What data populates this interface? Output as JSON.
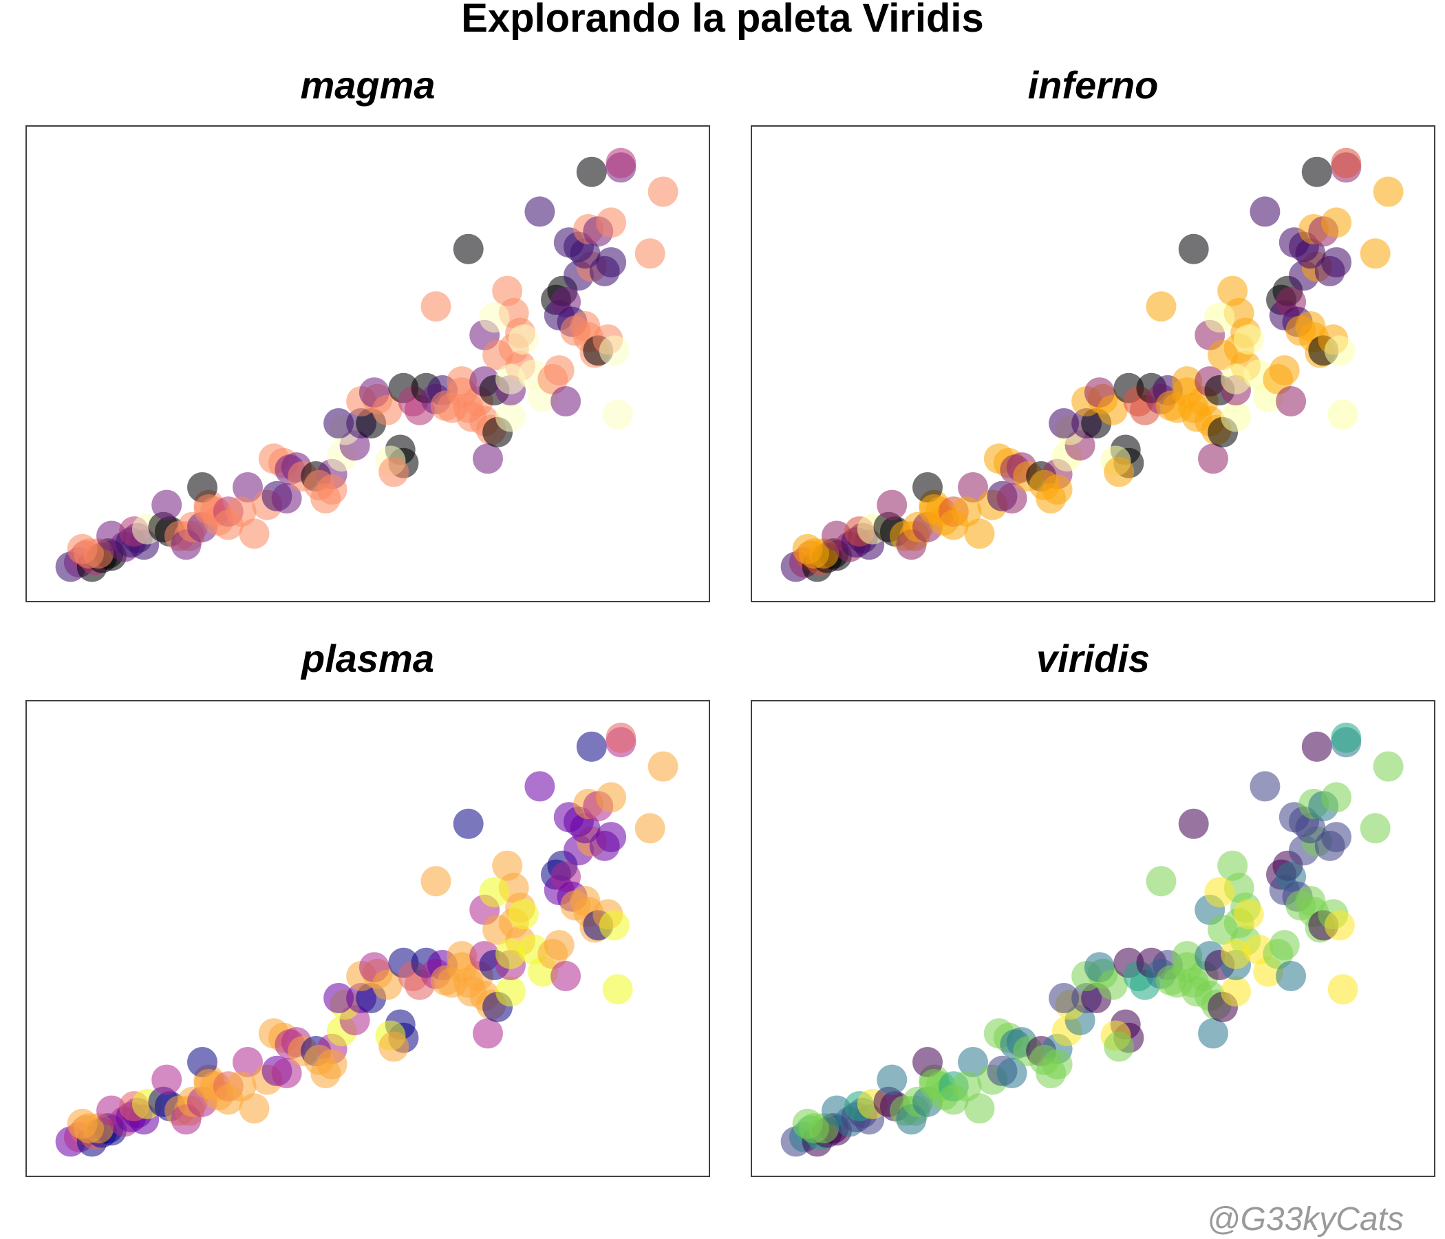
{
  "title": "Explorando la paleta Viridis",
  "watermark": "@G33kyCats",
  "chart_data": {
    "type": "scatter",
    "xlim": [
      0,
      100
    ],
    "ylim": [
      0,
      100
    ],
    "grid": false,
    "axes_shown": false,
    "point_opacity": 0.55,
    "points": [
      {
        "x": 4.2,
        "y": 4.0,
        "c": 1
      },
      {
        "x": 5.5,
        "y": 5.0,
        "c": 2
      },
      {
        "x": 6.5,
        "y": 6.5,
        "c": 3
      },
      {
        "x": 7.5,
        "y": 4.0,
        "c": 0
      },
      {
        "x": 8.0,
        "y": 5.5,
        "c": 3
      },
      {
        "x": 9.0,
        "y": 6.0,
        "c": 0
      },
      {
        "x": 10.0,
        "y": 7.0,
        "c": 0
      },
      {
        "x": 10.5,
        "y": 6.5,
        "c": 0
      },
      {
        "x": 6.0,
        "y": 8.0,
        "c": 4
      },
      {
        "x": 7.0,
        "y": 7.0,
        "c": 4
      },
      {
        "x": 8.5,
        "y": 7.0,
        "c": 4
      },
      {
        "x": 10.5,
        "y": 11.0,
        "c": 2
      },
      {
        "x": 12.5,
        "y": 8.5,
        "c": 2
      },
      {
        "x": 13.5,
        "y": 9.5,
        "c": 1
      },
      {
        "x": 14.5,
        "y": 10.5,
        "c": 1
      },
      {
        "x": 15.5,
        "y": 9.0,
        "c": 1
      },
      {
        "x": 14.0,
        "y": 12.0,
        "c": 3
      },
      {
        "x": 16.0,
        "y": 12.5,
        "c": 5
      },
      {
        "x": 18.5,
        "y": 13.0,
        "c": 0
      },
      {
        "x": 19.5,
        "y": 12.0,
        "c": 0
      },
      {
        "x": 19.0,
        "y": 18.0,
        "c": 2
      },
      {
        "x": 21.0,
        "y": 11.0,
        "c": 4
      },
      {
        "x": 22.5,
        "y": 11.0,
        "c": 4
      },
      {
        "x": 22.0,
        "y": 9.0,
        "c": 2
      },
      {
        "x": 23.0,
        "y": 13.0,
        "c": 4
      },
      {
        "x": 24.5,
        "y": 13.0,
        "c": 2
      },
      {
        "x": 25.5,
        "y": 18.0,
        "c": 4
      },
      {
        "x": 24.5,
        "y": 22.0,
        "c": 0
      },
      {
        "x": 25.5,
        "y": 17.0,
        "c": 4
      },
      {
        "x": 26.5,
        "y": 16.5,
        "c": 4
      },
      {
        "x": 27.0,
        "y": 14.5,
        "c": 4
      },
      {
        "x": 28.5,
        "y": 16.5,
        "c": 3
      },
      {
        "x": 28.5,
        "y": 13.5,
        "c": 4
      },
      {
        "x": 31.5,
        "y": 22.0,
        "c": 2
      },
      {
        "x": 30.5,
        "y": 16.5,
        "c": 4
      },
      {
        "x": 32.5,
        "y": 11.5,
        "c": 4
      },
      {
        "x": 34.5,
        "y": 18.0,
        "c": 4
      },
      {
        "x": 36.0,
        "y": 20.0,
        "c": 1
      },
      {
        "x": 37.5,
        "y": 19.5,
        "c": 2
      },
      {
        "x": 35.5,
        "y": 28.5,
        "c": 4
      },
      {
        "x": 37.0,
        "y": 27.5,
        "c": 4
      },
      {
        "x": 38.0,
        "y": 26.0,
        "c": 2
      },
      {
        "x": 39.0,
        "y": 26.5,
        "c": 2
      },
      {
        "x": 40.0,
        "y": 24.5,
        "c": 4
      },
      {
        "x": 42.0,
        "y": 24.5,
        "c": 0
      },
      {
        "x": 44.5,
        "y": 25.0,
        "c": 2
      },
      {
        "x": 44.5,
        "y": 21.5,
        "c": 4
      },
      {
        "x": 42.5,
        "y": 22.5,
        "c": 4
      },
      {
        "x": 43.5,
        "y": 19.5,
        "c": 4
      },
      {
        "x": 46.0,
        "y": 29.0,
        "c": 5
      },
      {
        "x": 48.0,
        "y": 31.5,
        "c": 2
      },
      {
        "x": 46.5,
        "y": 35.0,
        "c": 5
      },
      {
        "x": 45.5,
        "y": 36.5,
        "c": 1
      },
      {
        "x": 49.0,
        "y": 36.5,
        "c": 1
      },
      {
        "x": 50.5,
        "y": 36.5,
        "c": 0
      },
      {
        "x": 49.0,
        "y": 41.5,
        "c": 4
      },
      {
        "x": 51.5,
        "y": 42.0,
        "c": 4
      },
      {
        "x": 51.0,
        "y": 43.5,
        "c": 2
      },
      {
        "x": 53.0,
        "y": 39.5,
        "c": 4
      },
      {
        "x": 55.0,
        "y": 30.5,
        "c": 0
      },
      {
        "x": 55.5,
        "y": 27.5,
        "c": 0
      },
      {
        "x": 53.5,
        "y": 28.0,
        "c": 5
      },
      {
        "x": 54.0,
        "y": 25.5,
        "c": 4
      },
      {
        "x": 55.5,
        "y": 44.5,
        "c": 0
      },
      {
        "x": 57.0,
        "y": 41.5,
        "c": 3
      },
      {
        "x": 58.0,
        "y": 39.5,
        "c": 3
      },
      {
        "x": 59.0,
        "y": 44.5,
        "c": 0
      },
      {
        "x": 60.5,
        "y": 42.0,
        "c": 2
      },
      {
        "x": 61.5,
        "y": 44.0,
        "c": 1
      },
      {
        "x": 62.0,
        "y": 40.5,
        "c": 4
      },
      {
        "x": 63.0,
        "y": 40.0,
        "c": 4
      },
      {
        "x": 64.5,
        "y": 43.5,
        "c": 4
      },
      {
        "x": 65.5,
        "y": 40.0,
        "c": 4
      },
      {
        "x": 64.5,
        "y": 46.0,
        "c": 4
      },
      {
        "x": 66.0,
        "y": 38.0,
        "c": 4
      },
      {
        "x": 67.0,
        "y": 41.5,
        "c": 4
      },
      {
        "x": 68.0,
        "y": 37.0,
        "c": 4
      },
      {
        "x": 69.0,
        "y": 35.0,
        "c": 4
      },
      {
        "x": 68.5,
        "y": 28.5,
        "c": 2
      },
      {
        "x": 68.0,
        "y": 46.0,
        "c": 2
      },
      {
        "x": 69.5,
        "y": 44.0,
        "c": 0
      },
      {
        "x": 70.0,
        "y": 34.5,
        "c": 0
      },
      {
        "x": 72.0,
        "y": 38.0,
        "c": 5
      },
      {
        "x": 72.0,
        "y": 44.0,
        "c": 2
      },
      {
        "x": 60.5,
        "y": 63.0,
        "c": 4
      },
      {
        "x": 65.5,
        "y": 76.0,
        "c": 0
      },
      {
        "x": 68.0,
        "y": 56.5,
        "c": 2
      },
      {
        "x": 71.5,
        "y": 66.5,
        "c": 4
      },
      {
        "x": 72.5,
        "y": 61.5,
        "c": 4
      },
      {
        "x": 72.5,
        "y": 53.5,
        "c": 4
      },
      {
        "x": 73.5,
        "y": 57.0,
        "c": 4
      },
      {
        "x": 69.5,
        "y": 60.5,
        "c": 5
      },
      {
        "x": 70.0,
        "y": 52.0,
        "c": 4
      },
      {
        "x": 73.5,
        "y": 49.5,
        "c": 4
      },
      {
        "x": 74.0,
        "y": 55.5,
        "c": 5
      },
      {
        "x": 72.0,
        "y": 46.5,
        "c": 5
      },
      {
        "x": 75.5,
        "y": 47.5,
        "c": 5
      },
      {
        "x": 77.0,
        "y": 42.5,
        "c": 5
      },
      {
        "x": 78.5,
        "y": 46.5,
        "c": 4
      },
      {
        "x": 79.5,
        "y": 48.5,
        "c": 4
      },
      {
        "x": 80.5,
        "y": 41.5,
        "c": 2
      },
      {
        "x": 79.0,
        "y": 64.5,
        "c": 0
      },
      {
        "x": 79.5,
        "y": 61.0,
        "c": 1
      },
      {
        "x": 80.0,
        "y": 66.5,
        "c": 0
      },
      {
        "x": 80.5,
        "y": 64.0,
        "c": 2
      },
      {
        "x": 81.5,
        "y": 59.5,
        "c": 1
      },
      {
        "x": 82.0,
        "y": 57.5,
        "c": 4
      },
      {
        "x": 83.5,
        "y": 58.5,
        "c": 4
      },
      {
        "x": 84.0,
        "y": 56.0,
        "c": 4
      },
      {
        "x": 85.0,
        "y": 52.5,
        "c": 4
      },
      {
        "x": 85.5,
        "y": 53.0,
        "c": 0
      },
      {
        "x": 87.0,
        "y": 55.5,
        "c": 4
      },
      {
        "x": 88.0,
        "y": 53.0,
        "c": 5
      },
      {
        "x": 88.5,
        "y": 38.5,
        "c": 5
      },
      {
        "x": 82.5,
        "y": 70.0,
        "c": 1
      },
      {
        "x": 84.5,
        "y": 72.0,
        "c": 4
      },
      {
        "x": 83.5,
        "y": 75.0,
        "c": 1
      },
      {
        "x": 82.5,
        "y": 76.5,
        "c": 1
      },
      {
        "x": 81.0,
        "y": 77.5,
        "c": 1
      },
      {
        "x": 84.0,
        "y": 80.5,
        "c": 4
      },
      {
        "x": 85.5,
        "y": 80.0,
        "c": 2
      },
      {
        "x": 86.5,
        "y": 71.0,
        "c": 1
      },
      {
        "x": 87.5,
        "y": 73.0,
        "c": 1
      },
      {
        "x": 87.5,
        "y": 82.0,
        "c": 4
      },
      {
        "x": 76.5,
        "y": 84.5,
        "c": 1
      },
      {
        "x": 84.5,
        "y": 93.5,
        "c": 0
      },
      {
        "x": 89.0,
        "y": 94.5,
        "c": 2
      },
      {
        "x": 89.0,
        "y": 95.5,
        "c": 3
      },
      {
        "x": 95.5,
        "y": 89.0,
        "c": 4
      },
      {
        "x": 93.5,
        "y": 75.0,
        "c": 4
      }
    ],
    "panels": [
      {
        "name": "magma",
        "colors": [
          "#000004",
          "#3b0f70",
          "#721f81",
          "#b73779",
          "#fc8961",
          "#fcfdbf"
        ]
      },
      {
        "name": "inferno",
        "colors": [
          "#000004",
          "#420a68",
          "#932667",
          "#dd513a",
          "#fca50a",
          "#fcffa4"
        ]
      },
      {
        "name": "plasma",
        "colors": [
          "#0d0887",
          "#6a00a8",
          "#b12a90",
          "#e16462",
          "#fca636",
          "#f0f921"
        ]
      },
      {
        "name": "viridis",
        "colors": [
          "#440154",
          "#414487",
          "#2a788e",
          "#22a884",
          "#7ad151",
          "#fde725"
        ]
      }
    ]
  }
}
